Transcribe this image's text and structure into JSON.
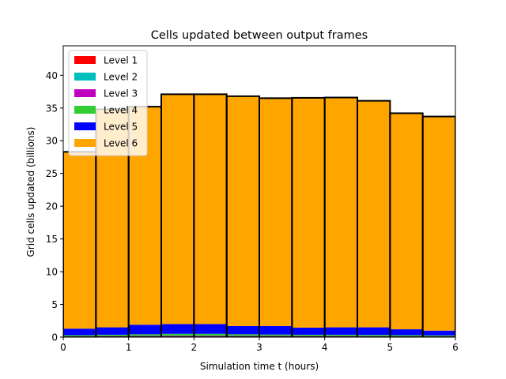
{
  "chart_data": {
    "type": "bar",
    "stacked": true,
    "title": "Cells updated between output frames",
    "xlabel": "Simulation time t (hours)",
    "ylabel": "Grid cells updated (billions)",
    "xlim": [
      0,
      6
    ],
    "ylim": [
      0,
      44.5
    ],
    "xticks": [
      0,
      1,
      2,
      3,
      4,
      5,
      6
    ],
    "yticks": [
      0,
      5,
      10,
      15,
      20,
      25,
      30,
      35,
      40
    ],
    "grid": false,
    "legend_position": "top-left",
    "bins": [
      [
        0,
        0.5
      ],
      [
        0.5,
        1
      ],
      [
        1,
        1.5
      ],
      [
        1.5,
        2
      ],
      [
        2,
        2.5
      ],
      [
        2.5,
        3
      ],
      [
        3,
        3.5
      ],
      [
        3.5,
        4
      ],
      [
        4,
        4.5
      ],
      [
        4.5,
        5
      ],
      [
        5,
        5.5
      ],
      [
        5.5,
        6
      ]
    ],
    "series": [
      {
        "name": "Level 1",
        "color": "#ff0000",
        "values": [
          0.02,
          0.02,
          0.02,
          0.02,
          0.02,
          0.02,
          0.02,
          0.02,
          0.02,
          0.02,
          0.02,
          0.02
        ]
      },
      {
        "name": "Level 2",
        "color": "#00bfbf",
        "values": [
          0.05,
          0.05,
          0.05,
          0.05,
          0.05,
          0.05,
          0.05,
          0.05,
          0.05,
          0.05,
          0.05,
          0.05
        ]
      },
      {
        "name": "Level 3",
        "color": "#bf00bf",
        "values": [
          0.08,
          0.1,
          0.12,
          0.14,
          0.14,
          0.12,
          0.11,
          0.1,
          0.1,
          0.09,
          0.08,
          0.07
        ]
      },
      {
        "name": "Level 4",
        "color": "#32cd32",
        "values": [
          0.15,
          0.2,
          0.25,
          0.3,
          0.3,
          0.25,
          0.22,
          0.2,
          0.2,
          0.18,
          0.15,
          0.12
        ]
      },
      {
        "name": "Level 5",
        "color": "#0000ff",
        "values": [
          1.0,
          1.13,
          1.46,
          1.49,
          1.49,
          1.26,
          1.3,
          1.08,
          1.13,
          1.16,
          0.9,
          0.74
        ]
      },
      {
        "name": "Level 6",
        "color": "#ffa500",
        "values": [
          27.0,
          33.3,
          33.3,
          35.1,
          35.1,
          35.1,
          34.8,
          35.1,
          35.1,
          34.6,
          33.0,
          32.7
        ]
      }
    ]
  }
}
